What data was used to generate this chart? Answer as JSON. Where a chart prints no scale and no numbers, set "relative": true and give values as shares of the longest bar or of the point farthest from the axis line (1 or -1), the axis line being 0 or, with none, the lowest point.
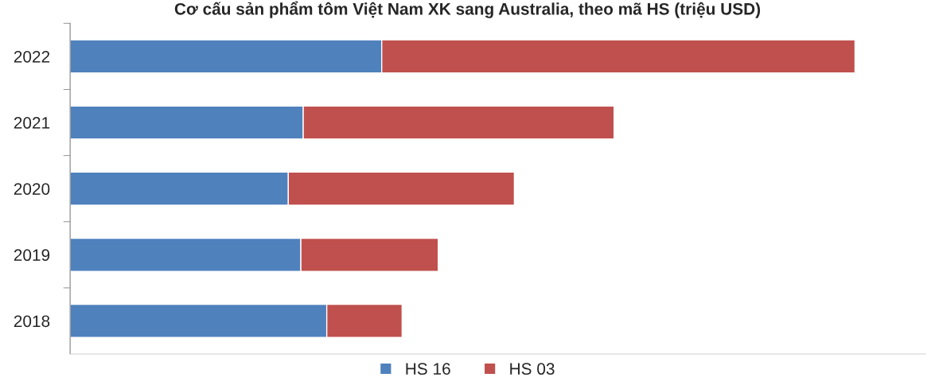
{
  "chart_data": {
    "type": "bar",
    "orientation": "horizontal",
    "stacked": true,
    "relative": true,
    "title": "Cơ cấu sản phẩm tôm Việt Nam XK sang Australia, theo mã HS (triệu USD)",
    "categories": [
      "2022",
      "2021",
      "2020",
      "2019",
      "2018"
    ],
    "series": [
      {
        "name": "HS 16",
        "color": "#4f81bd",
        "values": [
          0.397,
          0.297,
          0.278,
          0.294,
          0.327
        ]
      },
      {
        "name": "HS 03",
        "color": "#c0504d",
        "values": [
          0.603,
          0.396,
          0.288,
          0.175,
          0.096
        ]
      }
    ],
    "legend": "bottom",
    "grid": false,
    "tick_labels": "y"
  }
}
